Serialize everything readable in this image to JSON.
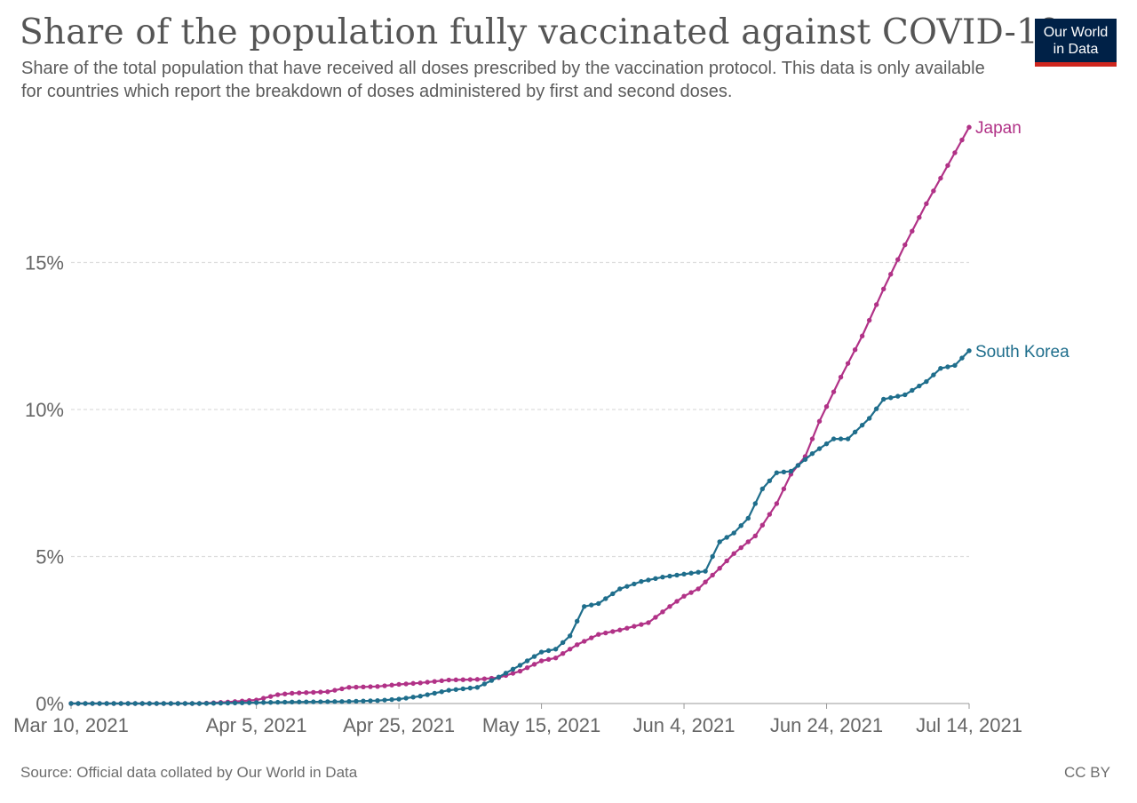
{
  "title": "Share of the population fully vaccinated against COVID-19",
  "subtitle": "Share of the total population that have received all doses prescribed by the vaccination protocol. This data is only available for countries which report the breakdown of doses administered by first and second doses.",
  "logo": {
    "line1": "Our World",
    "line2": "in Data"
  },
  "footer": {
    "source": "Source: Official data collated by Our World in Data",
    "license": "CC BY"
  },
  "chart_data": {
    "type": "line",
    "title": "Share of the population fully vaccinated against COVID-19",
    "x_axis": {
      "type": "date",
      "range": [
        "2021-03-10",
        "2021-07-14"
      ],
      "ticks": [
        {
          "date": "2021-03-10",
          "label": "Mar 10, 2021"
        },
        {
          "date": "2021-04-05",
          "label": "Apr 5, 2021"
        },
        {
          "date": "2021-04-25",
          "label": "Apr 25, 2021"
        },
        {
          "date": "2021-05-15",
          "label": "May 15, 2021"
        },
        {
          "date": "2021-06-04",
          "label": "Jun 4, 2021"
        },
        {
          "date": "2021-06-24",
          "label": "Jun 24, 2021"
        },
        {
          "date": "2021-07-14",
          "label": "Jul 14, 2021"
        }
      ]
    },
    "y_axis": {
      "unit": "%",
      "range": [
        0,
        20
      ],
      "ticks": [
        {
          "value": 0,
          "label": "0%"
        },
        {
          "value": 5,
          "label": "5%"
        },
        {
          "value": 10,
          "label": "10%"
        },
        {
          "value": 15,
          "label": "15%"
        }
      ],
      "gridlines": true
    },
    "series": [
      {
        "name": "Japan",
        "color": "#b13287",
        "points": [
          [
            "2021-03-10",
            0.0
          ],
          [
            "2021-03-20",
            0.0
          ],
          [
            "2021-03-28",
            0.0
          ],
          [
            "2021-04-01",
            0.05
          ],
          [
            "2021-04-05",
            0.12
          ],
          [
            "2021-04-08",
            0.3
          ],
          [
            "2021-04-10",
            0.35
          ],
          [
            "2021-04-15",
            0.4
          ],
          [
            "2021-04-18",
            0.55
          ],
          [
            "2021-04-22",
            0.58
          ],
          [
            "2021-04-25",
            0.65
          ],
          [
            "2021-04-28",
            0.7
          ],
          [
            "2021-05-02",
            0.8
          ],
          [
            "2021-05-06",
            0.82
          ],
          [
            "2021-05-09",
            0.88
          ],
          [
            "2021-05-12",
            1.1
          ],
          [
            "2021-05-15",
            1.45
          ],
          [
            "2021-05-17",
            1.55
          ],
          [
            "2021-05-20",
            2.0
          ],
          [
            "2021-05-23",
            2.35
          ],
          [
            "2021-05-26",
            2.5
          ],
          [
            "2021-05-30",
            2.75
          ],
          [
            "2021-06-02",
            3.3
          ],
          [
            "2021-06-04",
            3.65
          ],
          [
            "2021-06-06",
            3.9
          ],
          [
            "2021-06-09",
            4.6
          ],
          [
            "2021-06-11",
            5.1
          ],
          [
            "2021-06-14",
            5.7
          ],
          [
            "2021-06-17",
            6.8
          ],
          [
            "2021-06-19",
            7.8
          ],
          [
            "2021-06-21",
            8.4
          ],
          [
            "2021-06-23",
            9.6
          ],
          [
            "2021-06-26",
            11.1
          ],
          [
            "2021-06-29",
            12.5
          ],
          [
            "2021-07-02",
            14.1
          ],
          [
            "2021-07-05",
            15.6
          ],
          [
            "2021-07-08",
            17.0
          ],
          [
            "2021-07-11",
            18.3
          ],
          [
            "2021-07-14",
            19.6
          ]
        ]
      },
      {
        "name": "South Korea",
        "color": "#1f6e8c",
        "points": [
          [
            "2021-03-10",
            0.0
          ],
          [
            "2021-03-20",
            0.0
          ],
          [
            "2021-03-28",
            0.0
          ],
          [
            "2021-04-05",
            0.03
          ],
          [
            "2021-04-10",
            0.05
          ],
          [
            "2021-04-18",
            0.07
          ],
          [
            "2021-04-22",
            0.1
          ],
          [
            "2021-04-25",
            0.15
          ],
          [
            "2021-04-28",
            0.25
          ],
          [
            "2021-05-02",
            0.45
          ],
          [
            "2021-05-06",
            0.55
          ],
          [
            "2021-05-09",
            0.9
          ],
          [
            "2021-05-12",
            1.3
          ],
          [
            "2021-05-15",
            1.75
          ],
          [
            "2021-05-17",
            1.85
          ],
          [
            "2021-05-19",
            2.3
          ],
          [
            "2021-05-21",
            3.3
          ],
          [
            "2021-05-23",
            3.4
          ],
          [
            "2021-05-26",
            3.9
          ],
          [
            "2021-05-29",
            4.15
          ],
          [
            "2021-06-01",
            4.3
          ],
          [
            "2021-06-04",
            4.4
          ],
          [
            "2021-06-07",
            4.5
          ],
          [
            "2021-06-09",
            5.5
          ],
          [
            "2021-06-11",
            5.8
          ],
          [
            "2021-06-13",
            6.3
          ],
          [
            "2021-06-15",
            7.3
          ],
          [
            "2021-06-17",
            7.85
          ],
          [
            "2021-06-19",
            7.9
          ],
          [
            "2021-06-22",
            8.5
          ],
          [
            "2021-06-25",
            9.0
          ],
          [
            "2021-06-27",
            9.0
          ],
          [
            "2021-06-30",
            9.7
          ],
          [
            "2021-07-02",
            10.35
          ],
          [
            "2021-07-05",
            10.5
          ],
          [
            "2021-07-08",
            10.95
          ],
          [
            "2021-07-10",
            11.4
          ],
          [
            "2021-07-12",
            11.5
          ],
          [
            "2021-07-14",
            12.0
          ]
        ]
      }
    ],
    "legend_placement": "line-end labels, right"
  }
}
